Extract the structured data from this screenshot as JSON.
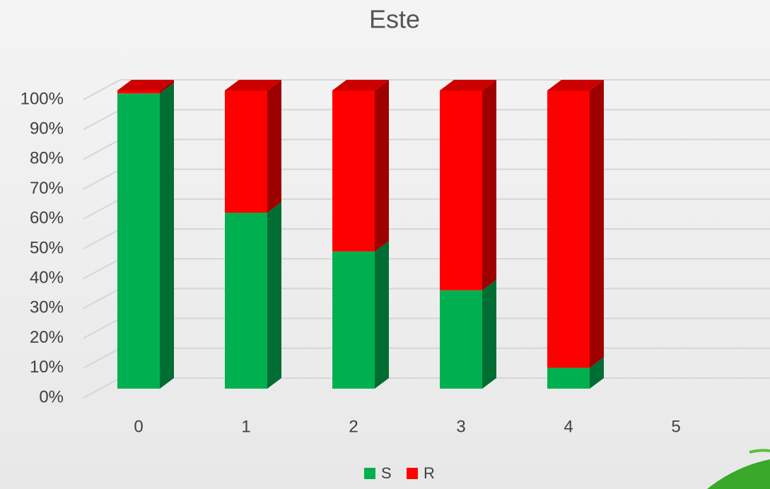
{
  "chart_data": {
    "type": "stacked_bar_3d",
    "title": "Este",
    "categories": [
      "0",
      "1",
      "2",
      "3",
      "4",
      "5"
    ],
    "series": [
      {
        "name": "S",
        "color": "#00b050",
        "values": [
          99,
          59,
          46,
          33,
          7,
          null
        ]
      },
      {
        "name": "R",
        "color": "#ff0000",
        "values": [
          1,
          41,
          54,
          67,
          93,
          null
        ]
      }
    ],
    "ylim": [
      0,
      100
    ],
    "yticks": [
      {
        "value": 0,
        "label": "0%"
      },
      {
        "value": 10,
        "label": "10%"
      },
      {
        "value": 20,
        "label": "20%"
      },
      {
        "value": 30,
        "label": "30%"
      },
      {
        "value": 40,
        "label": "40%"
      },
      {
        "value": 50,
        "label": "50%"
      },
      {
        "value": 60,
        "label": "60%"
      },
      {
        "value": 70,
        "label": "70%"
      },
      {
        "value": 80,
        "label": "80%"
      },
      {
        "value": 90,
        "label": "90%"
      },
      {
        "value": 100,
        "label": "100%"
      }
    ],
    "grid": true,
    "legend": "bottom"
  }
}
